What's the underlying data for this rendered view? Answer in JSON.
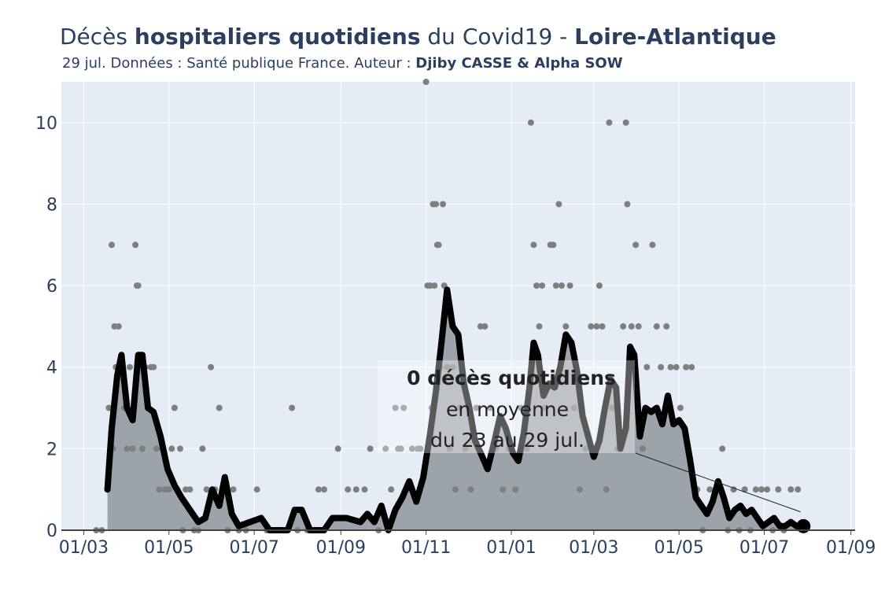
{
  "title": {
    "part1": "Décès ",
    "part2_bold": "hospitaliers quotidiens",
    "part3": " du Covid19 - ",
    "part4_bold": "Loire-Atlantique"
  },
  "subtitle": {
    "text": "29 jul. Données : Santé publique France. Auteur : ",
    "authors_bold": "Djiby CASSE & Alpha SOW"
  },
  "colors": {
    "plot_bg": "#e5ecf6",
    "grid": "#ffffff",
    "points": "#7f7f7f",
    "area_fill": "#9da3ab",
    "line": "#000000",
    "text": "#2a3f5f"
  },
  "chart_data": {
    "type": "line",
    "title": "Décès hospitaliers quotidiens du Covid19 - Loire-Atlantique",
    "xlabel": "",
    "ylabel": "",
    "x_unit": "date",
    "xlim": [
      "2020-02-14",
      "2021-09-04"
    ],
    "ylim": [
      0,
      11
    ],
    "grid": true,
    "x_ticks": [
      {
        "date": "2020-03-01",
        "label": "01/03"
      },
      {
        "date": "2020-05-01",
        "label": "01/05"
      },
      {
        "date": "2020-07-01",
        "label": "01/07"
      },
      {
        "date": "2020-09-01",
        "label": "01/09"
      },
      {
        "date": "2020-11-01",
        "label": "01/11"
      },
      {
        "date": "2021-01-01",
        "label": "01/01"
      },
      {
        "date": "2021-03-01",
        "label": "01/03"
      },
      {
        "date": "2021-05-01",
        "label": "01/05"
      },
      {
        "date": "2021-07-01",
        "label": "01/07"
      },
      {
        "date": "2021-09-01",
        "label": "01/09"
      }
    ],
    "y_ticks": [
      0,
      2,
      4,
      6,
      8,
      10
    ],
    "series": [
      {
        "kind": "rolling_mean_7d",
        "points": [
          [
            "2020-03-18",
            1.0
          ],
          [
            "2020-03-21",
            2.5
          ],
          [
            "2020-03-25",
            3.8
          ],
          [
            "2020-03-28",
            4.3
          ],
          [
            "2020-04-01",
            3.0
          ],
          [
            "2020-04-05",
            2.7
          ],
          [
            "2020-04-09",
            4.3
          ],
          [
            "2020-04-12",
            4.3
          ],
          [
            "2020-04-16",
            3.0
          ],
          [
            "2020-04-20",
            2.9
          ],
          [
            "2020-04-25",
            2.3
          ],
          [
            "2020-04-30",
            1.5
          ],
          [
            "2020-05-05",
            1.1
          ],
          [
            "2020-05-10",
            0.8
          ],
          [
            "2020-05-16",
            0.5
          ],
          [
            "2020-05-22",
            0.2
          ],
          [
            "2020-05-27",
            0.3
          ],
          [
            "2020-06-01",
            1.0
          ],
          [
            "2020-06-06",
            0.6
          ],
          [
            "2020-06-10",
            1.3
          ],
          [
            "2020-06-15",
            0.4
          ],
          [
            "2020-06-20",
            0.1
          ],
          [
            "2020-06-28",
            0.2
          ],
          [
            "2020-07-06",
            0.3
          ],
          [
            "2020-07-12",
            0.0
          ],
          [
            "2020-07-25",
            0.0
          ],
          [
            "2020-07-30",
            0.5
          ],
          [
            "2020-08-04",
            0.5
          ],
          [
            "2020-08-10",
            0.0
          ],
          [
            "2020-08-20",
            0.0
          ],
          [
            "2020-08-26",
            0.3
          ],
          [
            "2020-09-05",
            0.3
          ],
          [
            "2020-09-15",
            0.2
          ],
          [
            "2020-09-20",
            0.4
          ],
          [
            "2020-09-25",
            0.2
          ],
          [
            "2020-09-30",
            0.6
          ],
          [
            "2020-10-05",
            0.0
          ],
          [
            "2020-10-10",
            0.5
          ],
          [
            "2020-10-15",
            0.8
          ],
          [
            "2020-10-20",
            1.2
          ],
          [
            "2020-10-25",
            0.7
          ],
          [
            "2020-10-30",
            1.3
          ],
          [
            "2020-11-04",
            2.4
          ],
          [
            "2020-11-08",
            3.4
          ],
          [
            "2020-11-12",
            4.6
          ],
          [
            "2020-11-16",
            5.9
          ],
          [
            "2020-11-20",
            5.0
          ],
          [
            "2020-11-24",
            4.8
          ],
          [
            "2020-11-28",
            3.6
          ],
          [
            "2020-12-02",
            3.0
          ],
          [
            "2020-12-06",
            2.2
          ],
          [
            "2020-12-10",
            1.9
          ],
          [
            "2020-12-15",
            1.5
          ],
          [
            "2020-12-20",
            2.2
          ],
          [
            "2020-12-24",
            2.8
          ],
          [
            "2020-12-28",
            2.5
          ],
          [
            "2021-01-02",
            1.9
          ],
          [
            "2021-01-06",
            1.7
          ],
          [
            "2021-01-10",
            2.4
          ],
          [
            "2021-01-14",
            3.5
          ],
          [
            "2021-01-17",
            4.6
          ],
          [
            "2021-01-20",
            4.3
          ],
          [
            "2021-01-24",
            3.3
          ],
          [
            "2021-01-28",
            3.6
          ],
          [
            "2021-02-01",
            3.5
          ],
          [
            "2021-02-05",
            4.0
          ],
          [
            "2021-02-09",
            4.8
          ],
          [
            "2021-02-13",
            4.6
          ],
          [
            "2021-02-17",
            3.9
          ],
          [
            "2021-02-21",
            2.8
          ],
          [
            "2021-02-25",
            2.3
          ],
          [
            "2021-03-01",
            1.8
          ],
          [
            "2021-03-05",
            2.2
          ],
          [
            "2021-03-09",
            3.0
          ],
          [
            "2021-03-13",
            3.7
          ],
          [
            "2021-03-17",
            3.5
          ],
          [
            "2021-03-20",
            2.0
          ],
          [
            "2021-03-24",
            2.5
          ],
          [
            "2021-03-27",
            4.5
          ],
          [
            "2021-03-30",
            4.3
          ],
          [
            "2021-04-03",
            2.3
          ],
          [
            "2021-04-07",
            3.0
          ],
          [
            "2021-04-11",
            2.9
          ],
          [
            "2021-04-15",
            3.0
          ],
          [
            "2021-04-19",
            2.6
          ],
          [
            "2021-04-23",
            3.3
          ],
          [
            "2021-04-27",
            2.6
          ],
          [
            "2021-05-01",
            2.7
          ],
          [
            "2021-05-05",
            2.5
          ],
          [
            "2021-05-09",
            1.7
          ],
          [
            "2021-05-13",
            0.8
          ],
          [
            "2021-05-17",
            0.6
          ],
          [
            "2021-05-21",
            0.4
          ],
          [
            "2021-05-25",
            0.7
          ],
          [
            "2021-05-29",
            1.2
          ],
          [
            "2021-06-02",
            0.8
          ],
          [
            "2021-06-06",
            0.3
          ],
          [
            "2021-06-10",
            0.5
          ],
          [
            "2021-06-14",
            0.6
          ],
          [
            "2021-06-18",
            0.4
          ],
          [
            "2021-06-22",
            0.5
          ],
          [
            "2021-06-26",
            0.3
          ],
          [
            "2021-06-30",
            0.1
          ],
          [
            "2021-07-04",
            0.2
          ],
          [
            "2021-07-08",
            0.3
          ],
          [
            "2021-07-12",
            0.1
          ],
          [
            "2021-07-16",
            0.1
          ],
          [
            "2021-07-20",
            0.2
          ],
          [
            "2021-07-24",
            0.1
          ],
          [
            "2021-07-29",
            0.1
          ]
        ]
      },
      {
        "kind": "daily_deaths",
        "points": [
          [
            "2020-03-10",
            0
          ],
          [
            "2020-03-14",
            0
          ],
          [
            "2020-03-18",
            1
          ],
          [
            "2020-03-19",
            3
          ],
          [
            "2020-03-21",
            7
          ],
          [
            "2020-03-22",
            2
          ],
          [
            "2020-03-23",
            5
          ],
          [
            "2020-03-24",
            4
          ],
          [
            "2020-03-26",
            5
          ],
          [
            "2020-03-28",
            4
          ],
          [
            "2020-03-30",
            3
          ],
          [
            "2020-04-01",
            2
          ],
          [
            "2020-04-03",
            4
          ],
          [
            "2020-04-05",
            2
          ],
          [
            "2020-04-07",
            7
          ],
          [
            "2020-04-08",
            6
          ],
          [
            "2020-04-09",
            6
          ],
          [
            "2020-04-10",
            4
          ],
          [
            "2020-04-12",
            2
          ],
          [
            "2020-04-14",
            4
          ],
          [
            "2020-04-16",
            3
          ],
          [
            "2020-04-18",
            4
          ],
          [
            "2020-04-20",
            4
          ],
          [
            "2020-04-22",
            2
          ],
          [
            "2020-04-24",
            1
          ],
          [
            "2020-04-26",
            2
          ],
          [
            "2020-04-28",
            1
          ],
          [
            "2020-05-01",
            1
          ],
          [
            "2020-05-03",
            2
          ],
          [
            "2020-05-05",
            3
          ],
          [
            "2020-05-07",
            1
          ],
          [
            "2020-05-09",
            2
          ],
          [
            "2020-05-11",
            0
          ],
          [
            "2020-05-13",
            1
          ],
          [
            "2020-05-16",
            1
          ],
          [
            "2020-05-19",
            0
          ],
          [
            "2020-05-22",
            0
          ],
          [
            "2020-05-25",
            2
          ],
          [
            "2020-05-28",
            1
          ],
          [
            "2020-05-31",
            4
          ],
          [
            "2020-06-03",
            1
          ],
          [
            "2020-06-06",
            3
          ],
          [
            "2020-06-09",
            1
          ],
          [
            "2020-06-12",
            0
          ],
          [
            "2020-06-16",
            1
          ],
          [
            "2020-06-20",
            0
          ],
          [
            "2020-06-25",
            0
          ],
          [
            "2020-07-03",
            1
          ],
          [
            "2020-07-10",
            0
          ],
          [
            "2020-07-20",
            0
          ],
          [
            "2020-07-28",
            3
          ],
          [
            "2020-08-01",
            0
          ],
          [
            "2020-08-08",
            0
          ],
          [
            "2020-08-16",
            1
          ],
          [
            "2020-08-20",
            1
          ],
          [
            "2020-08-30",
            2
          ],
          [
            "2020-09-06",
            1
          ],
          [
            "2020-09-12",
            1
          ],
          [
            "2020-09-18",
            1
          ],
          [
            "2020-09-22",
            2
          ],
          [
            "2020-09-28",
            0
          ],
          [
            "2020-10-03",
            2
          ],
          [
            "2020-10-07",
            1
          ],
          [
            "2020-10-10",
            3
          ],
          [
            "2020-10-12",
            2
          ],
          [
            "2020-10-14",
            2
          ],
          [
            "2020-10-16",
            3
          ],
          [
            "2020-10-18",
            1
          ],
          [
            "2020-10-22",
            2
          ],
          [
            "2020-10-26",
            2
          ],
          [
            "2020-10-28",
            2
          ],
          [
            "2020-11-01",
            11
          ],
          [
            "2020-11-02",
            6
          ],
          [
            "2020-11-04",
            6
          ],
          [
            "2020-11-05",
            3
          ],
          [
            "2020-11-06",
            8
          ],
          [
            "2020-11-07",
            6
          ],
          [
            "2020-11-08",
            8
          ],
          [
            "2020-11-09",
            7
          ],
          [
            "2020-11-10",
            7
          ],
          [
            "2020-11-11",
            4
          ],
          [
            "2020-11-13",
            8
          ],
          [
            "2020-11-14",
            6
          ],
          [
            "2020-11-16",
            4
          ],
          [
            "2020-11-18",
            2
          ],
          [
            "2020-11-20",
            4
          ],
          [
            "2020-11-22",
            1
          ],
          [
            "2020-11-25",
            3
          ],
          [
            "2020-11-29",
            2
          ],
          [
            "2020-12-03",
            1
          ],
          [
            "2020-12-07",
            3
          ],
          [
            "2020-12-10",
            5
          ],
          [
            "2020-12-13",
            5
          ],
          [
            "2020-12-17",
            3
          ],
          [
            "2020-12-21",
            2
          ],
          [
            "2020-12-26",
            1
          ],
          [
            "2020-12-30",
            2
          ],
          [
            "2021-01-04",
            1
          ],
          [
            "2021-01-08",
            3
          ],
          [
            "2021-01-12",
            2
          ],
          [
            "2021-01-15",
            10
          ],
          [
            "2021-01-17",
            7
          ],
          [
            "2021-01-19",
            6
          ],
          [
            "2021-01-21",
            5
          ],
          [
            "2021-01-23",
            6
          ],
          [
            "2021-01-25",
            3
          ],
          [
            "2021-01-29",
            7
          ],
          [
            "2021-01-31",
            7
          ],
          [
            "2021-02-02",
            6
          ],
          [
            "2021-02-04",
            8
          ],
          [
            "2021-02-06",
            6
          ],
          [
            "2021-02-09",
            5
          ],
          [
            "2021-02-12",
            6
          ],
          [
            "2021-02-15",
            3
          ],
          [
            "2021-02-19",
            1
          ],
          [
            "2021-02-23",
            2
          ],
          [
            "2021-02-27",
            5
          ],
          [
            "2021-03-03",
            5
          ],
          [
            "2021-03-05",
            6
          ],
          [
            "2021-03-07",
            5
          ],
          [
            "2021-03-10",
            1
          ],
          [
            "2021-03-12",
            10
          ],
          [
            "2021-03-14",
            3
          ],
          [
            "2021-03-18",
            2
          ],
          [
            "2021-03-22",
            5
          ],
          [
            "2021-03-24",
            10
          ],
          [
            "2021-03-25",
            8
          ],
          [
            "2021-03-28",
            5
          ],
          [
            "2021-03-31",
            7
          ],
          [
            "2021-04-02",
            5
          ],
          [
            "2021-04-05",
            2
          ],
          [
            "2021-04-08",
            4
          ],
          [
            "2021-04-12",
            7
          ],
          [
            "2021-04-15",
            5
          ],
          [
            "2021-04-18",
            4
          ],
          [
            "2021-04-22",
            5
          ],
          [
            "2021-04-25",
            4
          ],
          [
            "2021-04-29",
            4
          ],
          [
            "2021-05-02",
            3
          ],
          [
            "2021-05-06",
            4
          ],
          [
            "2021-05-10",
            4
          ],
          [
            "2021-05-14",
            1
          ],
          [
            "2021-05-18",
            0
          ],
          [
            "2021-05-23",
            1
          ],
          [
            "2021-05-27",
            1
          ],
          [
            "2021-06-01",
            2
          ],
          [
            "2021-06-05",
            0
          ],
          [
            "2021-06-09",
            1
          ],
          [
            "2021-06-13",
            0
          ],
          [
            "2021-06-17",
            1
          ],
          [
            "2021-06-21",
            0
          ],
          [
            "2021-06-25",
            1
          ],
          [
            "2021-06-29",
            1
          ],
          [
            "2021-07-03",
            1
          ],
          [
            "2021-07-07",
            0
          ],
          [
            "2021-07-11",
            1
          ],
          [
            "2021-07-15",
            0
          ],
          [
            "2021-07-20",
            1
          ],
          [
            "2021-07-25",
            1
          ]
        ]
      }
    ],
    "annotation": {
      "line1_bold": "0 décès quotidiens",
      "line2": "en moyenne",
      "line3": "du 23 au 29 jul.",
      "arrow_to": [
        "2021-07-27",
        0.45
      ]
    }
  }
}
